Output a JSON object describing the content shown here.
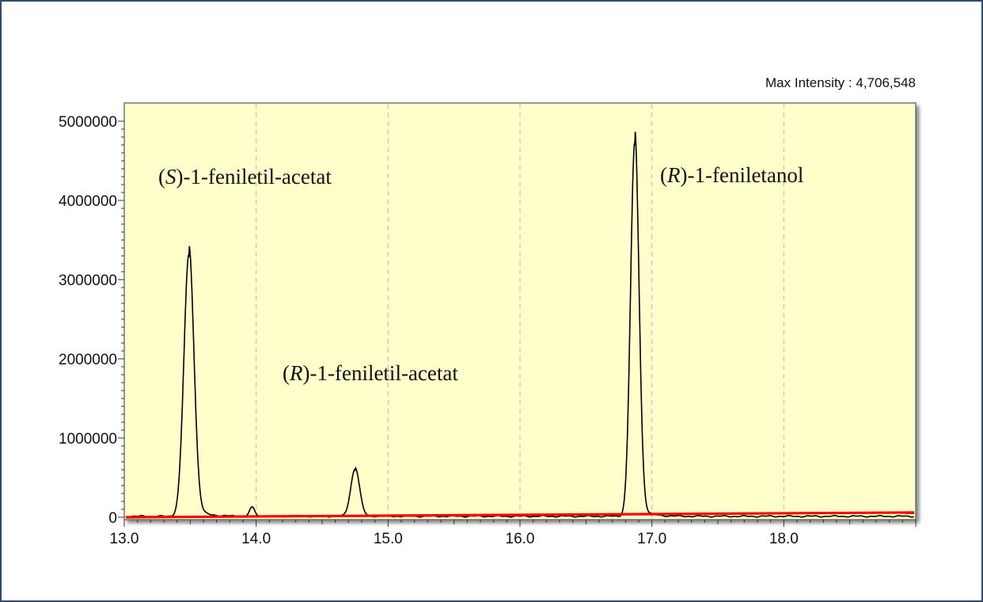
{
  "chart_data": {
    "type": "line",
    "title": "",
    "xlabel": "",
    "ylabel": "",
    "xlim": [
      13.0,
      19.0
    ],
    "ylim": [
      0,
      5000000
    ],
    "x_ticks": [
      "13.0",
      "14.0",
      "15.0",
      "16.0",
      "17.0",
      "18.0"
    ],
    "x_tick_values": [
      13.0,
      14.0,
      15.0,
      16.0,
      17.0,
      18.0
    ],
    "y_ticks": [
      "0",
      "1000000",
      "2000000",
      "3000000",
      "4000000",
      "5000000"
    ],
    "y_tick_values": [
      0,
      1000000,
      2000000,
      3000000,
      4000000,
      5000000
    ],
    "grid": "vertical dashed",
    "background_color": "#ffffcc",
    "trace_color": "#000000",
    "baseline_color": "#ff0000",
    "max_intensity": {
      "label": "Max Intensity :",
      "value": "4,706,548"
    },
    "peaks": [
      {
        "retention_time": 13.49,
        "intensity": 3300000,
        "label_prefix": "(",
        "label_italic": "S",
        "label_suffix": ")-1-feniletil-acetat"
      },
      {
        "retention_time": 14.75,
        "intensity": 600000,
        "label_prefix": "(",
        "label_italic": "R",
        "label_suffix": ")-1-feniletil-acetat"
      },
      {
        "retention_time": 16.87,
        "intensity": 4706548,
        "label_prefix": "(",
        "label_italic": "R",
        "label_suffix": ")-1-feniletanol"
      }
    ],
    "minor_peaks": [
      {
        "retention_time": 13.97,
        "intensity": 110000
      }
    ],
    "baseline": {
      "x": [
        13.0,
        19.0
      ],
      "y": [
        0,
        60000
      ]
    }
  }
}
